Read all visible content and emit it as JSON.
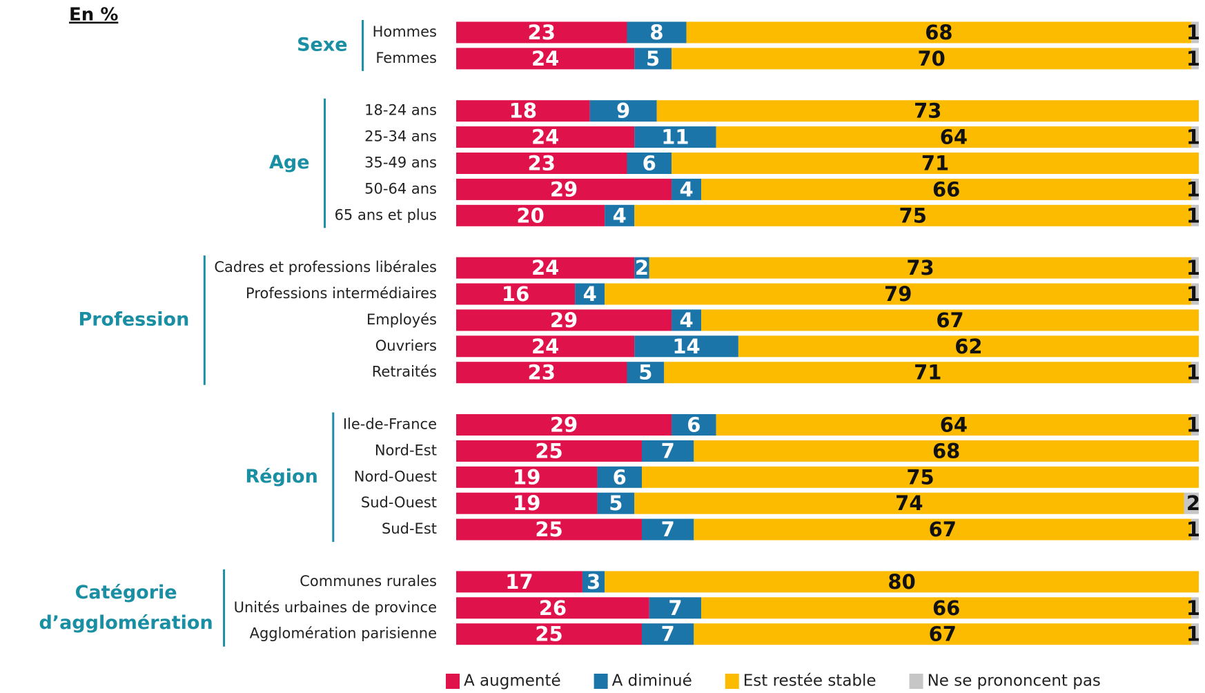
{
  "chart_data": {
    "type": "stacked-bar",
    "title": "En %",
    "groups": [
      {
        "label": "Sexe",
        "categories": [
          "Hommes",
          "Femmes"
        ]
      },
      {
        "label": "Age",
        "categories": [
          "18-24 ans",
          "25-34 ans",
          "35-49 ans",
          "50-64 ans",
          "65 ans et plus"
        ]
      },
      {
        "label": "Profession",
        "categories": [
          "Cadres et professions libérales",
          "Professions intermédiaires",
          "Employés",
          "Ouvriers",
          "Retraités"
        ]
      },
      {
        "label": "Région",
        "categories": [
          "Ile-de-France",
          "Nord-Est",
          "Nord-Ouest",
          "Sud-Ouest",
          "Sud-Est"
        ]
      },
      {
        "label": "Catégorie d’agglomération",
        "categories": [
          "Communes rurales",
          "Unités urbaines de province",
          "Agglomération parisienne"
        ]
      }
    ],
    "series": [
      {
        "name": "A augmenté",
        "color": "#e0124b",
        "values": [
          23,
          24,
          18,
          24,
          23,
          29,
          20,
          24,
          16,
          29,
          24,
          23,
          29,
          25,
          19,
          19,
          25,
          17,
          26,
          25
        ]
      },
      {
        "name": "A diminué",
        "color": "#1b75a8",
        "values": [
          8,
          5,
          9,
          11,
          6,
          4,
          4,
          2,
          4,
          4,
          14,
          5,
          6,
          7,
          6,
          5,
          7,
          3,
          7,
          7
        ]
      },
      {
        "name": "Est restée stable",
        "color": "#fdbb00",
        "values": [
          68,
          70,
          73,
          64,
          71,
          66,
          75,
          73,
          79,
          67,
          62,
          71,
          64,
          68,
          75,
          74,
          67,
          80,
          66,
          67
        ]
      },
      {
        "name": "Ne se prononcent pas",
        "color": "#c6c6c6",
        "values": [
          1,
          1,
          null,
          1,
          null,
          1,
          1,
          1,
          1,
          null,
          null,
          1,
          1,
          null,
          null,
          2,
          1,
          null,
          1,
          1
        ]
      }
    ],
    "xlim": [
      0,
      100
    ]
  }
}
